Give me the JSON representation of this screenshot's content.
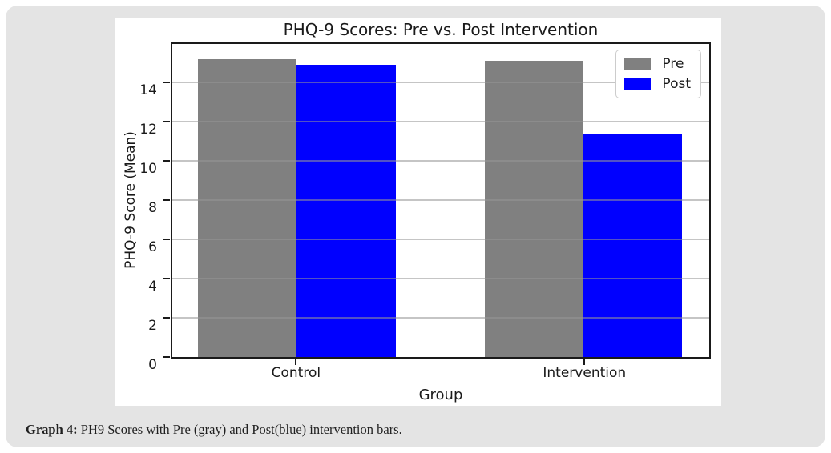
{
  "colors": {
    "page_background": "#ffffff",
    "card_background": "#e4e4e4",
    "pre_bar": "#808080",
    "post_bar": "#0000ff",
    "grid_line": "#b0b0b0",
    "spine": "#1a1a1a"
  },
  "chart_data": {
    "type": "bar",
    "title": "PHQ-9 Scores: Pre vs. Post Intervention",
    "xlabel": "Group",
    "ylabel": "PHQ-9 Score (Mean)",
    "categories": [
      "Control",
      "Intervention"
    ],
    "series": [
      {
        "name": "Pre",
        "color": "#808080",
        "values": [
          15.2,
          15.1
        ]
      },
      {
        "name": "Post",
        "color": "#0000ff",
        "values": [
          14.9,
          11.35
        ]
      }
    ],
    "ylim": [
      0,
      15.96
    ],
    "yticks": [
      0,
      2,
      4,
      6,
      8,
      10,
      12,
      14
    ],
    "grid": true,
    "grid_above_bars": true,
    "legend_position": "upper right",
    "group_centers": [
      0.232,
      0.766
    ],
    "bar_width_fraction": 0.184
  },
  "caption": {
    "prefix": "Graph 4:",
    "rest": " PH9 Scores with Pre (gray) and Post(blue) intervention bars."
  }
}
